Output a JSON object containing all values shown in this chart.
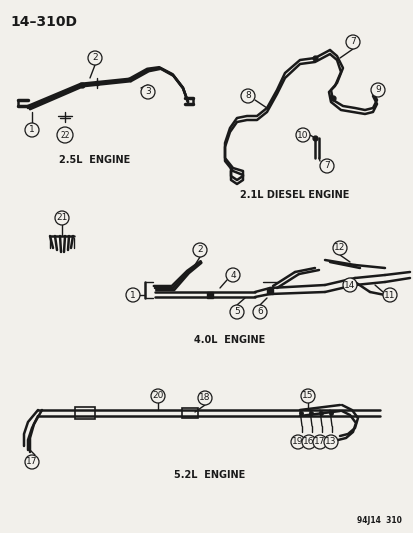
{
  "title": "14–310D",
  "bg_color": "#f2f0eb",
  "line_color": "#1a1a1a",
  "caption_25L": "2.5L  ENGINE",
  "caption_21L": "2.1L DIESEL ENGINE",
  "caption_40L": "4.0L  ENGINE",
  "caption_52L": "5.2L  ENGINE",
  "footer": "94J14  310"
}
